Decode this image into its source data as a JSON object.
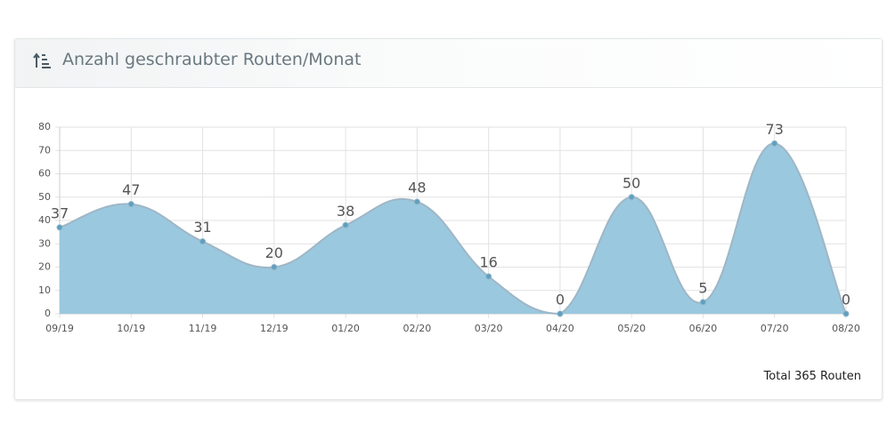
{
  "chart_data": {
    "type": "line",
    "title": "Anzahl geschraubter Routen/Monat",
    "categories": [
      "09/19",
      "10/19",
      "11/19",
      "12/19",
      "01/20",
      "02/20",
      "03/20",
      "04/20",
      "05/20",
      "06/20",
      "07/20",
      "08/20"
    ],
    "values": [
      37,
      47,
      31,
      20,
      38,
      48,
      16,
      0,
      50,
      5,
      73,
      0
    ],
    "color": "#9ac8de",
    "line_color": "#9fb6c6",
    "point_color": "#5f9fbf",
    "ylim": [
      0,
      80
    ],
    "yticks": [
      0,
      10,
      20,
      30,
      40,
      50,
      60,
      70,
      80
    ],
    "grid": true,
    "smooth": true,
    "footer": "Total 365 Routen"
  }
}
